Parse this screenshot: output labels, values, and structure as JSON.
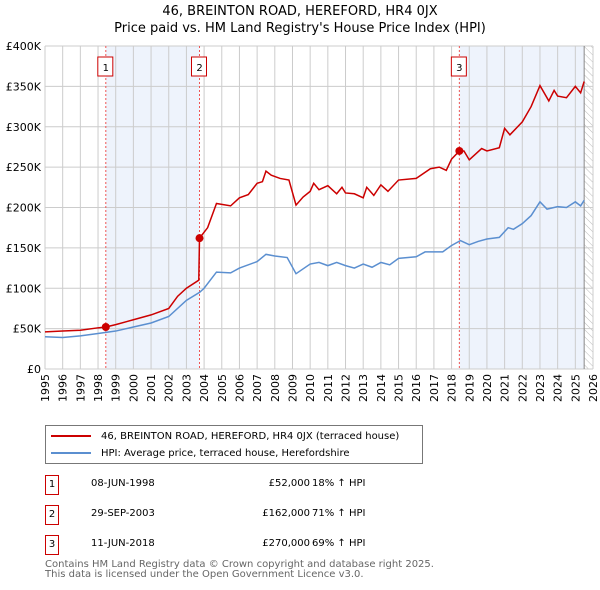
{
  "header": {
    "title": "46, BREINTON ROAD, HEREFORD, HR4 0JX",
    "subtitle": "Price paid vs. HM Land Registry's House Price Index (HPI)"
  },
  "colors": {
    "property": "#cc0000",
    "hpi": "#5b8fd0",
    "shade": "#eef3fc"
  },
  "chart_data": {
    "type": "line",
    "title": "46, BREINTON ROAD, HEREFORD, HR4 0JX",
    "subtitle": "Price paid vs. HM Land Registry's House Price Index (HPI)",
    "xlim": [
      1995,
      2026
    ],
    "ylim": [
      0,
      400000
    ],
    "x_ticks": [
      "1995",
      "1996",
      "1997",
      "1998",
      "1999",
      "2000",
      "2001",
      "2002",
      "2003",
      "2004",
      "2005",
      "2006",
      "2007",
      "2008",
      "2009",
      "2010",
      "2011",
      "2012",
      "2013",
      "2014",
      "2015",
      "2016",
      "2017",
      "2018",
      "2019",
      "2020",
      "2021",
      "2022",
      "2023",
      "2024",
      "2025",
      "2026"
    ],
    "y_ticks": [
      {
        "v": 0,
        "label": "£0"
      },
      {
        "v": 50000,
        "label": "£50K"
      },
      {
        "v": 100000,
        "label": "£100K"
      },
      {
        "v": 150000,
        "label": "£150K"
      },
      {
        "v": 200000,
        "label": "£200K"
      },
      {
        "v": 250000,
        "label": "£250K"
      },
      {
        "v": 300000,
        "label": "£300K"
      },
      {
        "v": 350000,
        "label": "£350K"
      },
      {
        "v": 400000,
        "label": "£400K"
      }
    ],
    "grid": true,
    "shaded_ranges": [
      [
        1998.44,
        2003.74
      ],
      [
        2018.44,
        2025.5
      ]
    ],
    "forecast_hatch_from": 2025.5,
    "series": [
      {
        "name": "46, BREINTON ROAD, HEREFORD, HR4 0JX (terraced house)",
        "color": "#cc0000",
        "x": [
          1995,
          1996,
          1997,
          1998,
          1998.44,
          1999,
          2000,
          2001,
          2002,
          2002.5,
          2003,
          2003.7,
          2003.74,
          2004.2,
          2004.7,
          2005.5,
          2006,
          2006.5,
          2007,
          2007.3,
          2007.5,
          2007.8,
          2008.3,
          2008.8,
          2009.2,
          2009.6,
          2010,
          2010.2,
          2010.5,
          2011,
          2011.5,
          2011.8,
          2012,
          2012.5,
          2013,
          2013.2,
          2013.6,
          2014,
          2014.4,
          2015,
          2016,
          2016.8,
          2017.3,
          2017.7,
          2018,
          2018.44,
          2018.7,
          2019,
          2019.7,
          2020,
          2020.7,
          2021,
          2021.3,
          2022,
          2022.5,
          2023,
          2023.5,
          2023.8,
          2024,
          2024.5,
          2025,
          2025.3,
          2025.5
        ],
        "y": [
          46000,
          47000,
          48000,
          51000,
          52000,
          55000,
          61000,
          67000,
          75000,
          90000,
          100000,
          110000,
          162000,
          175000,
          205000,
          202000,
          212000,
          216000,
          230000,
          232000,
          245000,
          240000,
          236000,
          234000,
          203000,
          213000,
          220000,
          230000,
          222000,
          227000,
          217000,
          225000,
          218000,
          217000,
          212000,
          225000,
          215000,
          228000,
          220000,
          234000,
          236000,
          248000,
          250000,
          246000,
          260000,
          270000,
          270000,
          259000,
          273000,
          270000,
          274000,
          298000,
          290000,
          306000,
          325000,
          351000,
          332000,
          345000,
          338000,
          336000,
          350000,
          342000,
          356000
        ]
      },
      {
        "name": "HPI: Average price, terraced house, Herefordshire",
        "color": "#5b8fd0",
        "x": [
          1995,
          1996,
          1997,
          1998,
          1999,
          2000,
          2001,
          2002,
          2003,
          2003.75,
          2004,
          2004.7,
          2005.5,
          2006,
          2007,
          2007.5,
          2008,
          2008.7,
          2009.2,
          2010,
          2010.5,
          2011,
          2011.5,
          2012,
          2012.5,
          2013,
          2013.5,
          2014,
          2014.5,
          2015,
          2016,
          2016.5,
          2017.5,
          2018,
          2018.5,
          2019,
          2019.5,
          2020,
          2020.7,
          2021.2,
          2021.5,
          2022,
          2022.5,
          2023,
          2023.4,
          2024,
          2024.5,
          2025,
          2025.3,
          2025.5
        ],
        "y": [
          40000,
          39000,
          41000,
          44000,
          47000,
          52000,
          57000,
          65000,
          85000,
          95000,
          100000,
          120000,
          119000,
          125000,
          133000,
          142000,
          140000,
          138000,
          118000,
          130000,
          132000,
          128000,
          132000,
          128000,
          125000,
          130000,
          126000,
          132000,
          129000,
          137000,
          139000,
          145000,
          145000,
          153000,
          159000,
          154000,
          158000,
          161000,
          163000,
          175000,
          173000,
          180000,
          190000,
          207000,
          198000,
          201000,
          200000,
          207000,
          202000,
          209000
        ]
      }
    ],
    "sales": [
      {
        "label": "1",
        "x": 1998.44,
        "y": 52000
      },
      {
        "label": "2",
        "x": 2003.74,
        "y": 162000
      },
      {
        "label": "3",
        "x": 2018.44,
        "y": 270000
      }
    ]
  },
  "legend": {
    "property": "46, BREINTON ROAD, HEREFORD, HR4 0JX (terraced house)",
    "hpi": "HPI: Average price, terraced house, Herefordshire"
  },
  "transactions": [
    {
      "num": "1",
      "date": "08-JUN-1998",
      "price": "£52,000",
      "hpi": "18% ↑ HPI"
    },
    {
      "num": "2",
      "date": "29-SEP-2003",
      "price": "£162,000",
      "hpi": "71% ↑ HPI"
    },
    {
      "num": "3",
      "date": "11-JUN-2018",
      "price": "£270,000",
      "hpi": "69% ↑ HPI"
    }
  ],
  "footer": {
    "line1": "Contains HM Land Registry data © Crown copyright and database right 2025.",
    "line2": "This data is licensed under the Open Government Licence v3.0."
  }
}
